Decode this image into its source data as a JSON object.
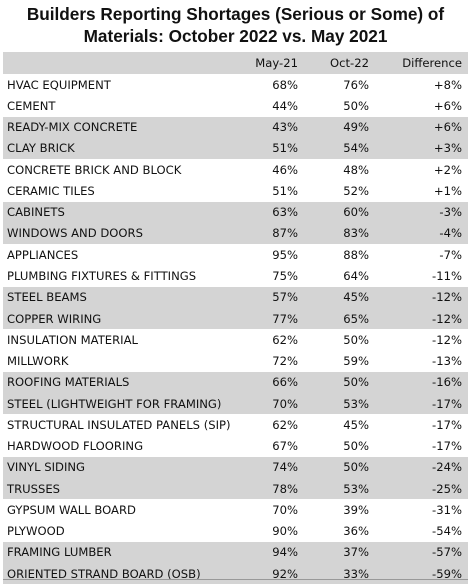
{
  "chart_data": {
    "type": "table",
    "title_line1": "Builders Reporting Shortages (Serious or Some) of",
    "title_line2": "Materials: October 2022 vs. May 2021",
    "columns": [
      "May-21",
      "Oct-22",
      "Difference"
    ],
    "rows": [
      {
        "material": "HVAC EQUIPMENT",
        "may21": "68%",
        "oct22": "76%",
        "diff": "+8%"
      },
      {
        "material": "CEMENT",
        "may21": "44%",
        "oct22": "50%",
        "diff": "+6%"
      },
      {
        "material": "READY-MIX CONCRETE",
        "may21": "43%",
        "oct22": "49%",
        "diff": "+6%"
      },
      {
        "material": "CLAY BRICK",
        "may21": "51%",
        "oct22": "54%",
        "diff": "+3%"
      },
      {
        "material": "CONCRETE BRICK AND BLOCK",
        "may21": "46%",
        "oct22": "48%",
        "diff": "+2%"
      },
      {
        "material": "CERAMIC TILES",
        "may21": "51%",
        "oct22": "52%",
        "diff": "+1%"
      },
      {
        "material": "CABINETS",
        "may21": "63%",
        "oct22": "60%",
        "diff": "-3%"
      },
      {
        "material": "WINDOWS AND DOORS",
        "may21": "87%",
        "oct22": "83%",
        "diff": "-4%"
      },
      {
        "material": "APPLIANCES",
        "may21": "95%",
        "oct22": "88%",
        "diff": "-7%"
      },
      {
        "material": "PLUMBING FIXTURES & FITTINGS",
        "may21": "75%",
        "oct22": "64%",
        "diff": "-11%"
      },
      {
        "material": "STEEL BEAMS",
        "may21": "57%",
        "oct22": "45%",
        "diff": "-12%"
      },
      {
        "material": "COPPER WIRING",
        "may21": "77%",
        "oct22": "65%",
        "diff": "-12%"
      },
      {
        "material": "INSULATION MATERIAL",
        "may21": "62%",
        "oct22": "50%",
        "diff": "-12%"
      },
      {
        "material": "MILLWORK",
        "may21": "72%",
        "oct22": "59%",
        "diff": "-13%"
      },
      {
        "material": "ROOFING MATERIALS",
        "may21": "66%",
        "oct22": "50%",
        "diff": "-16%"
      },
      {
        "material": "STEEL (LIGHTWEIGHT FOR FRAMING)",
        "may21": "70%",
        "oct22": "53%",
        "diff": "-17%"
      },
      {
        "material": "STRUCTURAL INSULATED PANELS (SIP)",
        "may21": "62%",
        "oct22": "45%",
        "diff": "-17%"
      },
      {
        "material": "HARDWOOD FLOORING",
        "may21": "67%",
        "oct22": "50%",
        "diff": "-17%"
      },
      {
        "material": "VINYL SIDING",
        "may21": "74%",
        "oct22": "50%",
        "diff": "-24%"
      },
      {
        "material": "TRUSSES",
        "may21": "78%",
        "oct22": "53%",
        "diff": "-25%"
      },
      {
        "material": "GYPSUM WALL BOARD",
        "may21": "70%",
        "oct22": "39%",
        "diff": "-31%"
      },
      {
        "material": "PLYWOOD",
        "may21": "90%",
        "oct22": "36%",
        "diff": "-54%"
      },
      {
        "material": "FRAMING LUMBER",
        "may21": "94%",
        "oct22": "37%",
        "diff": "-57%"
      },
      {
        "material": "ORIENTED STRAND BOARD (OSB)",
        "may21": "92%",
        "oct22": "33%",
        "diff": "-59%"
      }
    ],
    "shaded_rows": [
      2,
      3,
      6,
      7,
      10,
      11,
      14,
      15,
      18,
      19,
      22,
      23
    ],
    "colors": {
      "shade": "#d4d4d4",
      "text": "#111111"
    }
  }
}
